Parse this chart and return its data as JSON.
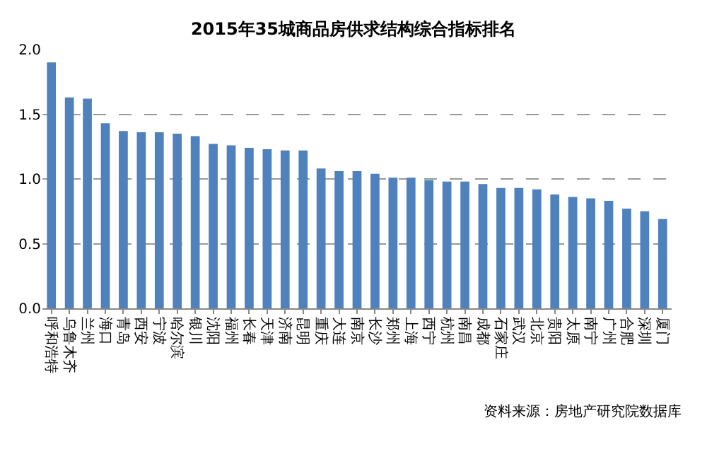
{
  "chart_data": {
    "type": "bar",
    "title": "2015年35城商品房供求结构综合指标排名",
    "categories": [
      "呼和浩特",
      "乌鲁木齐",
      "兰州",
      "海口",
      "青岛",
      "西安",
      "宁波",
      "哈尔滨",
      "银川",
      "沈阳",
      "福州",
      "长春",
      "天津",
      "济南",
      "昆明",
      "重庆",
      "大连",
      "南京",
      "长沙",
      "郑州",
      "上海",
      "西宁",
      "杭州",
      "南昌",
      "成都",
      "石家庄",
      "武汉",
      "北京",
      "贵阳",
      "太原",
      "南宁",
      "广州",
      "合肥",
      "深圳",
      "厦门"
    ],
    "values": [
      1.9,
      1.63,
      1.62,
      1.43,
      1.37,
      1.36,
      1.36,
      1.35,
      1.33,
      1.27,
      1.26,
      1.24,
      1.23,
      1.22,
      1.22,
      1.08,
      1.06,
      1.06,
      1.04,
      1.01,
      1.01,
      0.99,
      0.98,
      0.98,
      0.96,
      0.93,
      0.93,
      0.92,
      0.88,
      0.86,
      0.85,
      0.83,
      0.77,
      0.75,
      0.69
    ],
    "color": "#4f81bd",
    "ylim": [
      0,
      2
    ],
    "yticks": [
      {
        "value": 0,
        "label": "0.0"
      },
      {
        "value": 0.5,
        "label": "0.5"
      },
      {
        "value": 1,
        "label": "1.0"
      },
      {
        "value": 1.5,
        "label": "1.5"
      },
      {
        "value": 2,
        "label": "2.0"
      }
    ],
    "grid": "y",
    "annotations": [
      "资料来源：房地产研究院数据库"
    ]
  }
}
